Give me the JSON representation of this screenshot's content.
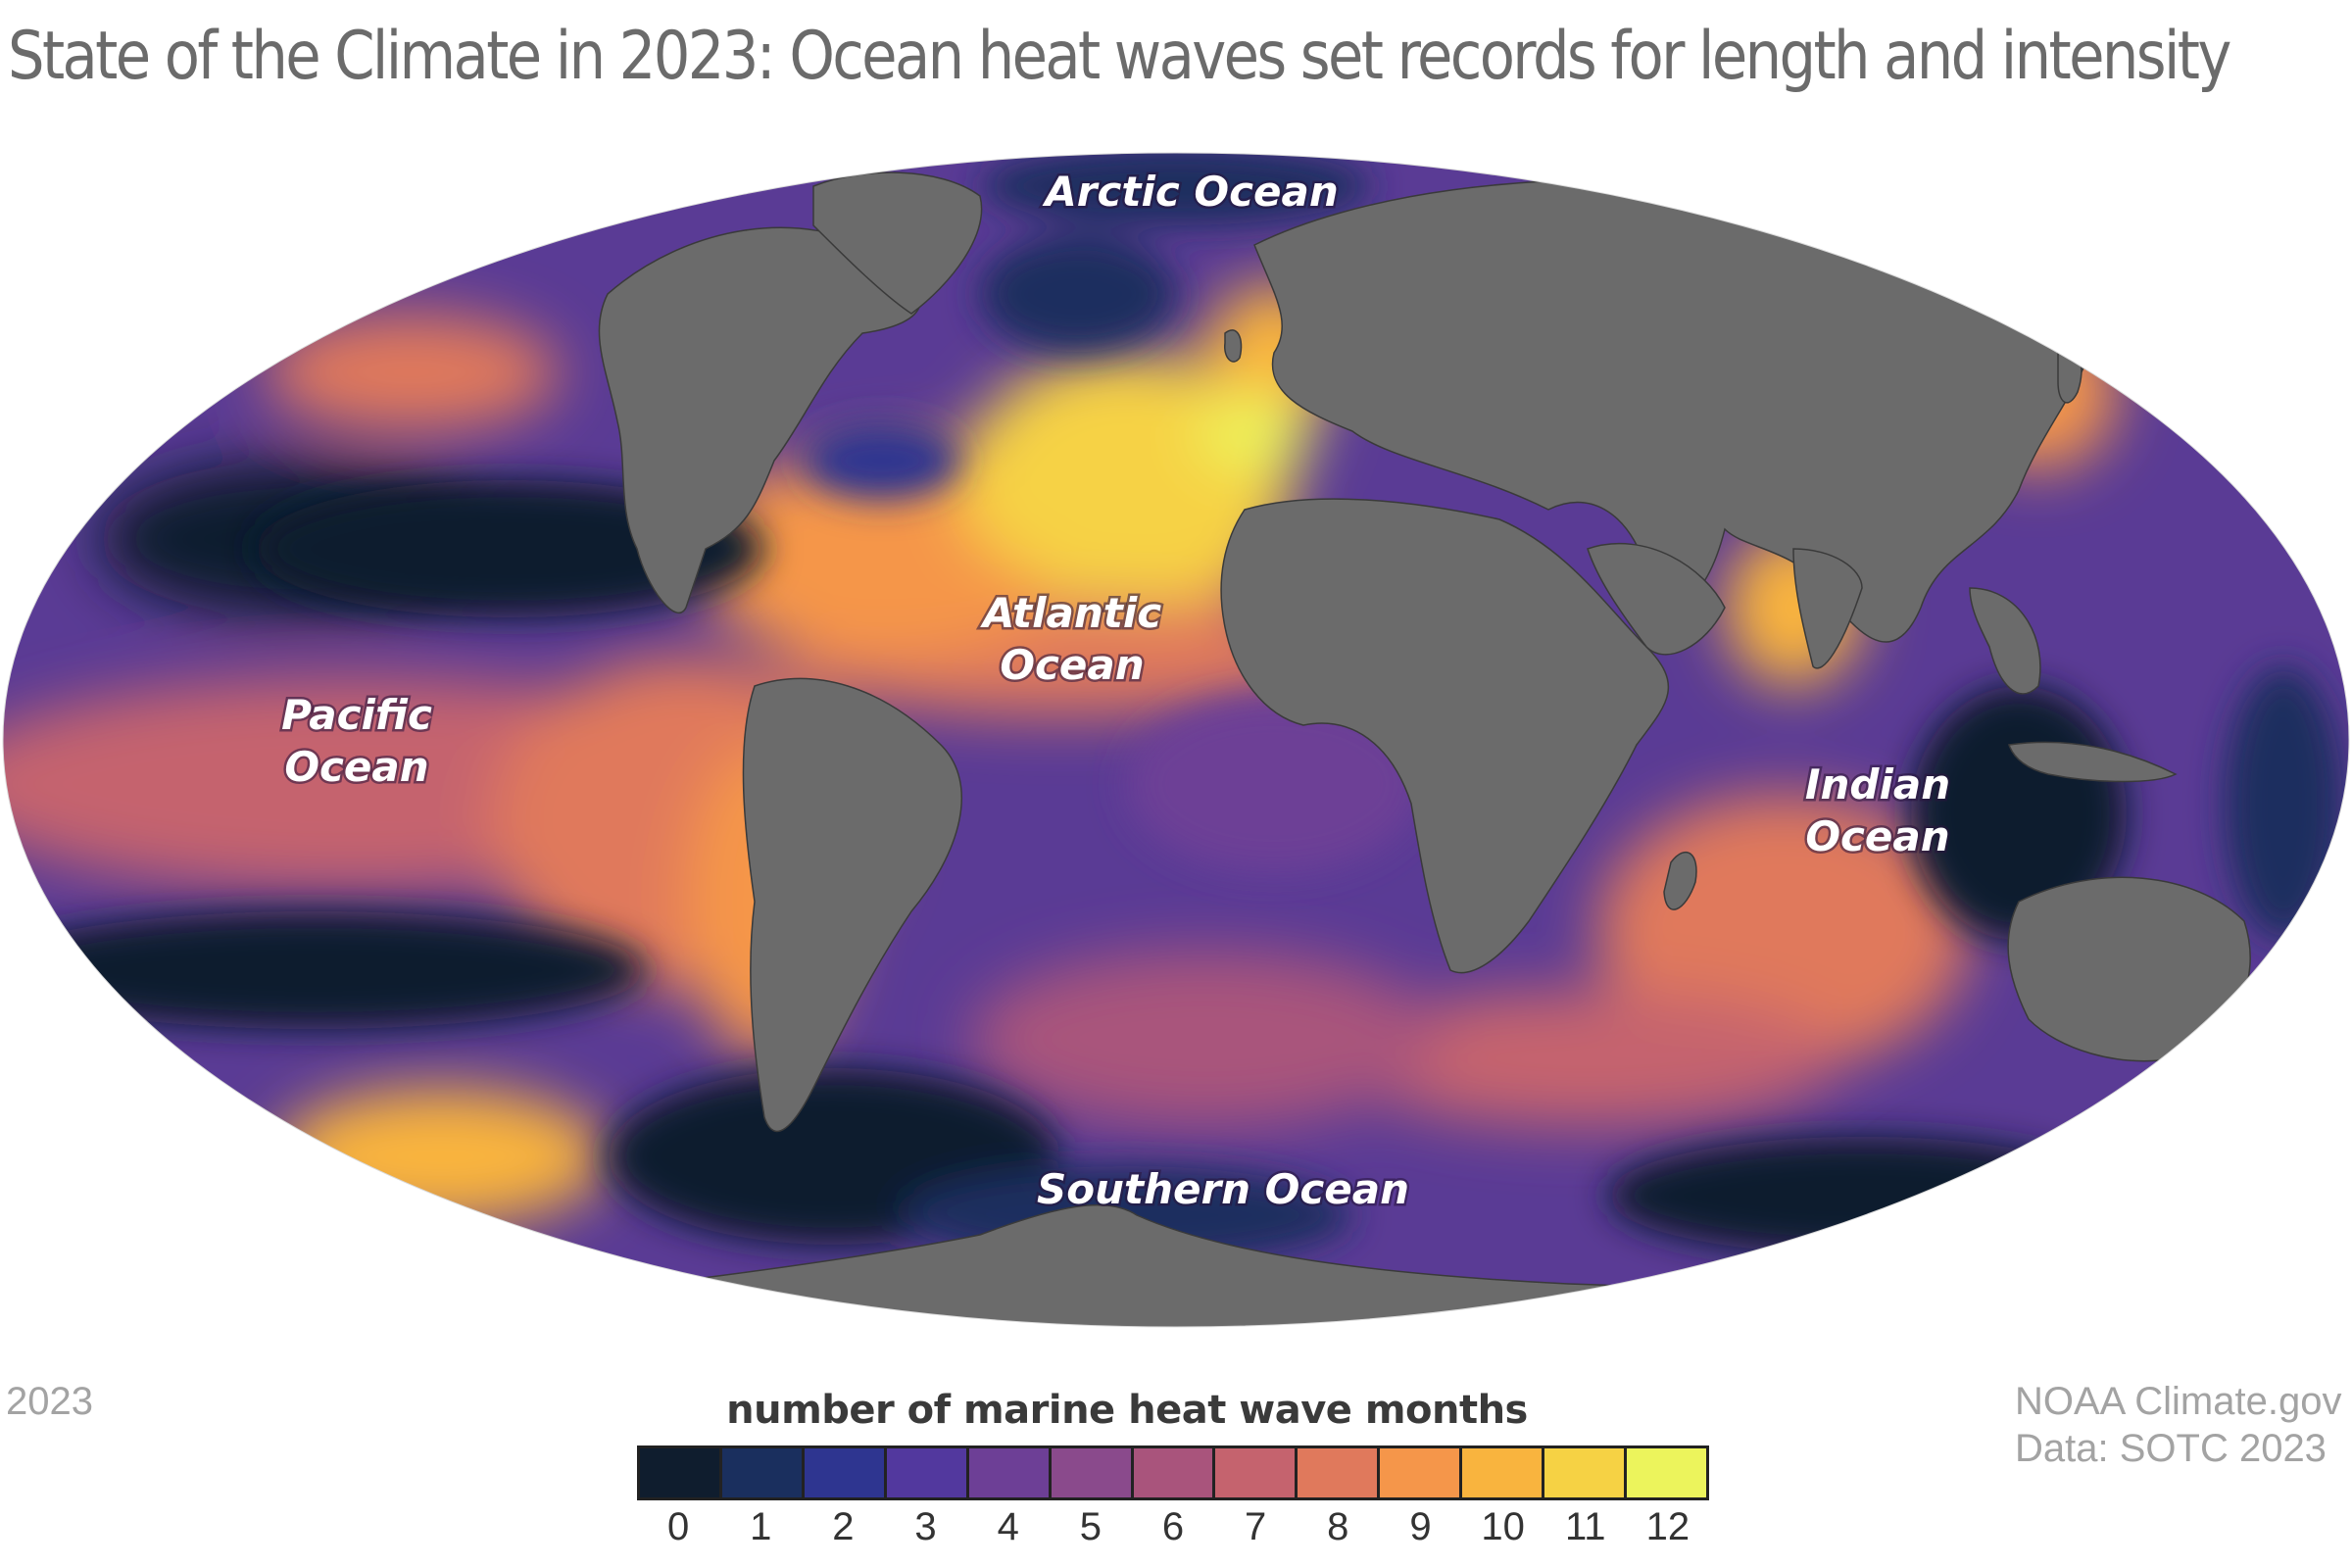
{
  "title": "State of the Climate in 2023: Ocean heat waves set records for length and intensity",
  "year_label": "2023",
  "credit": {
    "line1": "NOAA Climate.gov",
    "line2": "Data: SOTC 2023"
  },
  "ocean_labels": {
    "arctic": "Arctic Ocean",
    "atlantic_1": "Atlantic",
    "atlantic_2": "Ocean",
    "pacific_1": "Pacific",
    "pacific_2": "Ocean",
    "indian_1": "Indian",
    "indian_2": "Ocean",
    "southern": "Southern Ocean"
  },
  "legend": {
    "title": "number of marine heat wave months",
    "ticks": [
      "0",
      "1",
      "2",
      "3",
      "4",
      "5",
      "6",
      "7",
      "8",
      "9",
      "10",
      "11",
      "12"
    ],
    "colors": [
      "#0f1d2e",
      "#1a2f5e",
      "#2e3590",
      "#52389e",
      "#6d3f96",
      "#8a4a8c",
      "#a9547c",
      "#c5636e",
      "#e0795c",
      "#f5964a",
      "#f9b43e",
      "#f6d244",
      "#ecf45c"
    ]
  },
  "colors": {
    "land": "#6b6b6b",
    "border": "#3a3a3a"
  }
}
